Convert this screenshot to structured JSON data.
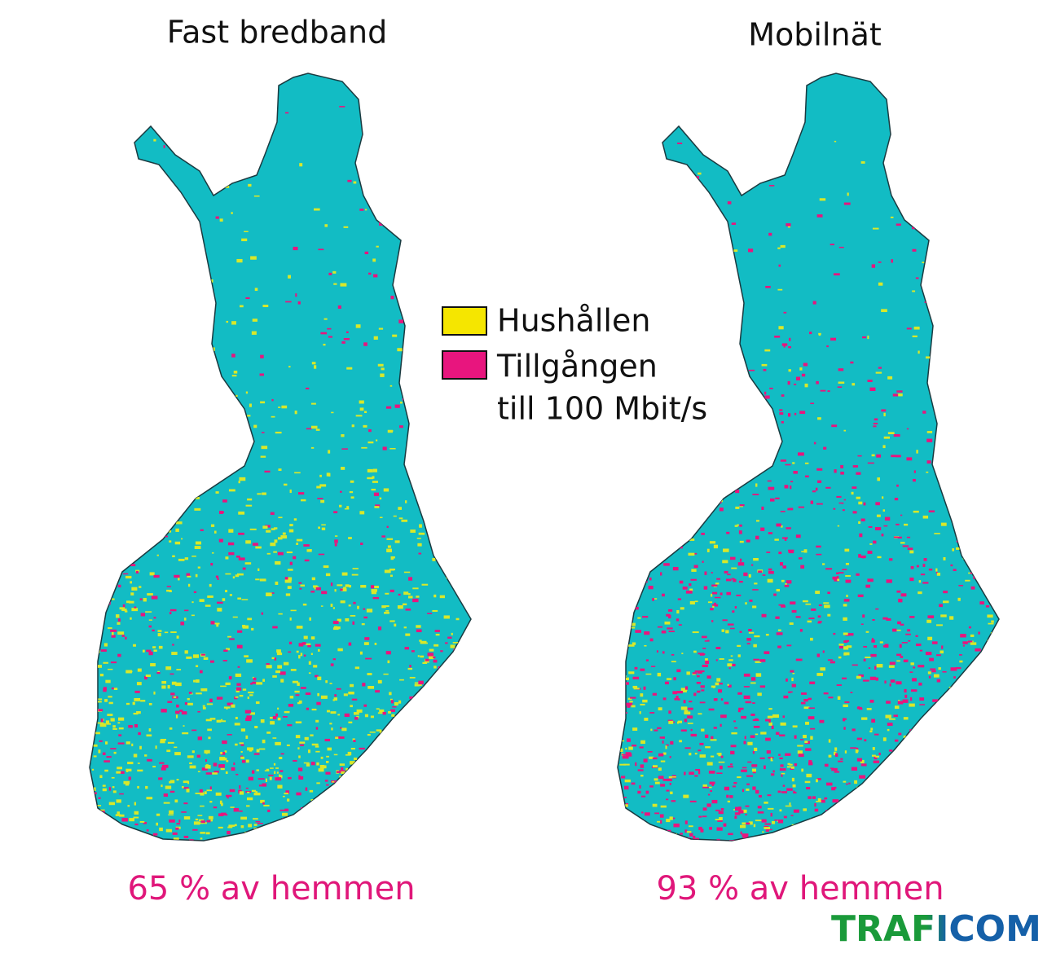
{
  "maps": [
    {
      "title": "Fast bredband",
      "caption": "65 % av hemmen"
    },
    {
      "title": "Mobilnät",
      "caption": "93 % av hemmen"
    }
  ],
  "legend": {
    "items": [
      "Hushållen",
      "Tillgången",
      "till 100 Mbit/s"
    ]
  },
  "logo": "TRAFICOM"
}
